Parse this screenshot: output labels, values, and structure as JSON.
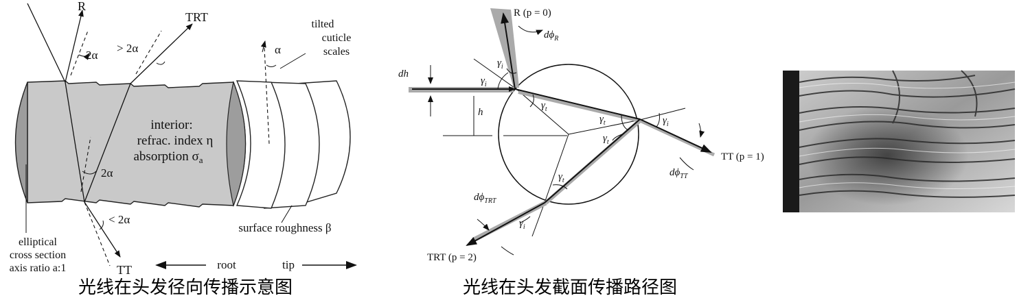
{
  "left_diagram": {
    "labels": {
      "r": "R",
      "trt": "TRT",
      "tt": "TT",
      "two_alpha_top": "2α",
      "gt_two_alpha": "> 2α",
      "two_alpha_mid": "2α",
      "lt_two_alpha": "< 2α",
      "alpha": "α",
      "tilted": "tilted",
      "cuticle": "cuticle",
      "scales": "scales",
      "interior": "interior:",
      "refrac": "refrac. index η",
      "absorption": "absorption σ",
      "absorption_sub": "a",
      "elliptical": "elliptical",
      "cross_section": "cross section",
      "axis_ratio": "axis ratio a:1",
      "surface_roughness": "surface roughness β",
      "root": "root",
      "tip": "tip"
    },
    "caption": "光线在头发径向传播示意图"
  },
  "middle_diagram": {
    "labels": {
      "r_p0": "R (p = 0)",
      "dphi_r": "dϕ",
      "dphi_r_sub": "R",
      "dh": "dh",
      "h": "h",
      "gamma_i": "γ",
      "gamma_sub_i": "i",
      "gamma_sub_t": "t",
      "tt_p1": "TT (p = 1)",
      "dphi_tt": "dϕ",
      "dphi_tt_sub": "TT",
      "dphi_trt": "dϕ",
      "dphi_trt_sub": "TRT",
      "trt_p2": "TRT (p = 2)"
    },
    "caption": "光线在头发截面传播路径图"
  },
  "right_image": {
    "description_icon": "cuticle-scales-photo"
  }
}
